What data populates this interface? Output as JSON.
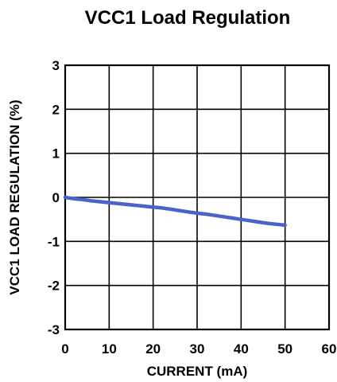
{
  "chart_data": {
    "type": "line",
    "title": "VCC1 Load Regulation",
    "xlabel": "CURRENT (mA)",
    "ylabel": "VCC1 LOAD REGULATION (%)",
    "xlim": [
      0,
      60
    ],
    "ylim": [
      -3,
      3
    ],
    "xticks": [
      0,
      10,
      20,
      30,
      40,
      50,
      60
    ],
    "yticks": [
      3,
      2,
      1,
      0,
      -1,
      -2,
      -3
    ],
    "grid": true,
    "series": [
      {
        "color": "#4a63c8",
        "x": [
          0,
          2,
          4,
          6,
          8,
          10,
          12,
          14,
          16,
          18,
          20,
          22,
          24,
          26,
          28,
          30,
          32,
          34,
          36,
          38,
          40,
          42,
          44,
          46,
          48,
          50
        ],
        "y": [
          0.0,
          -0.03,
          -0.05,
          -0.08,
          -0.1,
          -0.12,
          -0.14,
          -0.16,
          -0.18,
          -0.2,
          -0.22,
          -0.24,
          -0.27,
          -0.3,
          -0.33,
          -0.36,
          -0.38,
          -0.41,
          -0.44,
          -0.47,
          -0.5,
          -0.53,
          -0.56,
          -0.59,
          -0.61,
          -0.63
        ]
      }
    ]
  }
}
